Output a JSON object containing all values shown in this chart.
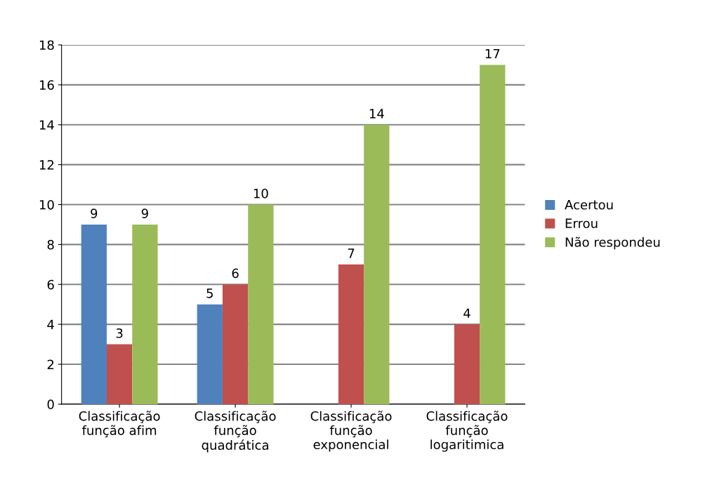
{
  "chart_data": {
    "type": "bar",
    "categories": [
      "Classificação\nfunção afim",
      "Classificação\nfunção\nquadrática",
      "Classificação\nfunção\nexponencial",
      "Classificação\nfunção\nlogaritimica"
    ],
    "series": [
      {
        "name": "Acertou",
        "color": "#4f81bd",
        "values": [
          9,
          5,
          null,
          null
        ]
      },
      {
        "name": "Errou",
        "color": "#c0504d",
        "values": [
          3,
          6,
          7,
          4
        ]
      },
      {
        "name": "Não respondeu",
        "color": "#9bbb59",
        "values": [
          9,
          10,
          14,
          17
        ]
      }
    ],
    "ylim": [
      0,
      18
    ],
    "yticks": [
      0,
      2,
      4,
      6,
      8,
      10,
      12,
      14,
      16,
      18
    ],
    "grid": "y",
    "legend": "right",
    "data_labels": true
  }
}
